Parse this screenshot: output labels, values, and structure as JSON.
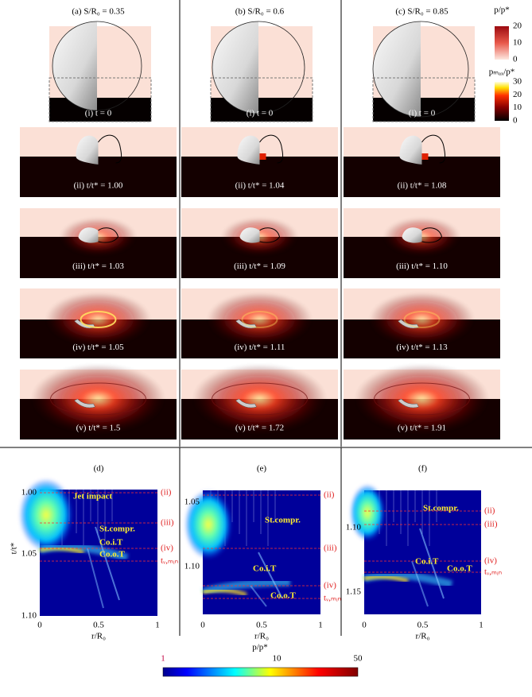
{
  "panels": [
    {
      "title": "(a) S/R₀ = 0.35",
      "frames": [
        "(i) t = 0",
        "(ii) t/t* = 1.00",
        "(iii) t/t* = 1.03",
        "(iv) t/t* = 1.05",
        "(v) t/t* = 1.5"
      ]
    },
    {
      "title": "(b) S/R₀ = 0.6",
      "frames": [
        "(i) t = 0",
        "(ii) t/t* = 1.04",
        "(iii) t/t* = 1.09",
        "(iv) t/t* = 1.11",
        "(v) t/t* = 1.72"
      ]
    },
    {
      "title": "(c) S/R₀ = 0.85",
      "frames": [
        "(i) t = 0",
        "(ii) t/t* = 1.08",
        "(iii) t/t* = 1.10",
        "(iv) t/t* = 1.13",
        "(v) t/t* = 1.91"
      ]
    }
  ],
  "pressure_colorbar": {
    "label": "p/p*",
    "ticks": [
      "20",
      "10",
      "0"
    ]
  },
  "peak_colorbar": {
    "label": "pₘₐₓ/p*",
    "ticks": [
      "30",
      "20",
      "10",
      "0"
    ]
  },
  "plots": [
    {
      "title": "(d)",
      "y_label": "t/t*",
      "x_label": "r/R₀",
      "yticks": [
        "1.00",
        "1.05",
        "1.10"
      ],
      "xticks": [
        "0",
        "0.5",
        "1"
      ],
      "annotations": [
        "Jet impact",
        "St.compr.",
        "Co.i.T",
        "Co.o.T"
      ],
      "markers": [
        "(ii)",
        "(iii)",
        "(iv)",
        "tᵥ,ₘᵢₙ"
      ]
    },
    {
      "title": "(e)",
      "x_label": "r/R₀",
      "yticks": [
        "1.05",
        "1.10"
      ],
      "xticks": [
        "0",
        "0.5",
        "1"
      ],
      "annotations": [
        "St.compr.",
        "Co.i.T",
        "Co.o.T"
      ],
      "markers": [
        "(ii)",
        "(iii)",
        "(iv)",
        "tᵥ,ₘᵢₙ"
      ]
    },
    {
      "title": "(f)",
      "x_label": "r/R₀",
      "yticks": [
        "1.10",
        "1.15"
      ],
      "xticks": [
        "0",
        "0.5",
        "1"
      ],
      "annotations": [
        "St.compr.",
        "Co.i.T",
        "Co.o.T"
      ],
      "markers": [
        "(ii)",
        "(iii)",
        "(iv)",
        "tᵥ,ₘᵢₙ"
      ]
    }
  ],
  "log_colorbar": {
    "label": "p/p*",
    "ticks": [
      "1",
      "10",
      "50"
    ]
  }
}
